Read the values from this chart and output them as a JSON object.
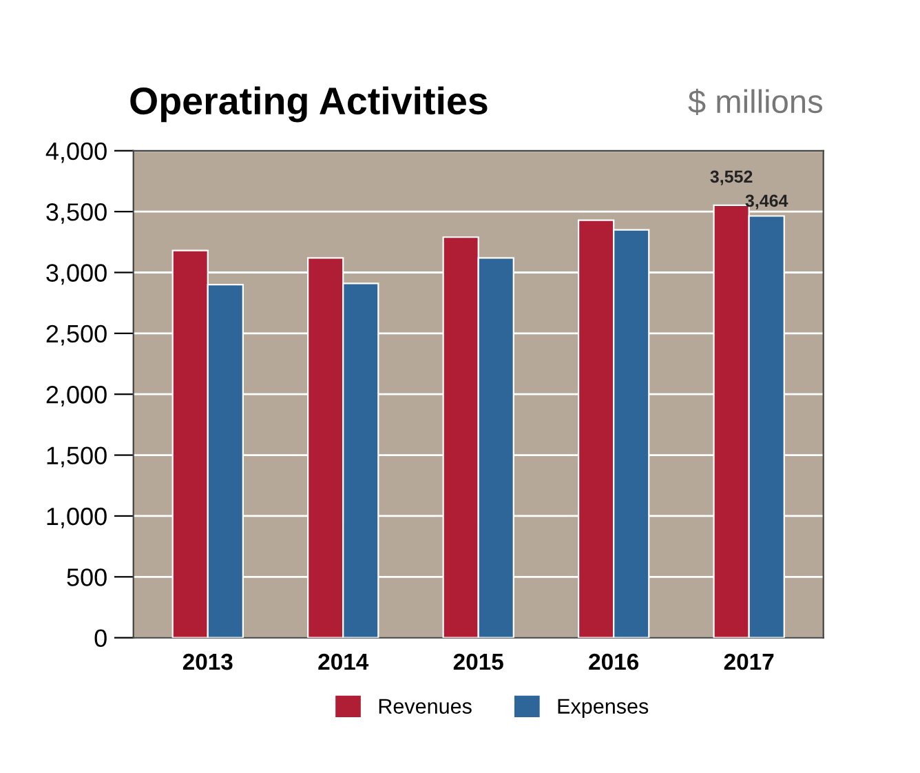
{
  "chart_data": {
    "type": "bar",
    "title": "Operating Activities",
    "subtitle": "$ millions",
    "categories": [
      "2013",
      "2014",
      "2015",
      "2016",
      "2017"
    ],
    "series": [
      {
        "name": "Revenues",
        "color": "#b01e35",
        "values": [
          3180,
          3120,
          3290,
          3430,
          3552
        ],
        "value_labels": [
          null,
          null,
          null,
          null,
          "3,552"
        ]
      },
      {
        "name": "Expenses",
        "color": "#2e6699",
        "values": [
          2900,
          2910,
          3120,
          3350,
          3464
        ],
        "value_labels": [
          null,
          null,
          null,
          null,
          "3,464"
        ]
      }
    ],
    "ylim": [
      0,
      4000
    ],
    "yticks": [
      {
        "value": 0,
        "label": "0"
      },
      {
        "value": 500,
        "label": "500"
      },
      {
        "value": 1000,
        "label": "1,000"
      },
      {
        "value": 1500,
        "label": "1,500"
      },
      {
        "value": 2000,
        "label": "2,000"
      },
      {
        "value": 2500,
        "label": "2,500"
      },
      {
        "value": 3000,
        "label": "3,000"
      },
      {
        "value": 3500,
        "label": "3,500"
      },
      {
        "value": 4000,
        "label": "4,000"
      }
    ],
    "grid": "y",
    "legend": "bottom"
  }
}
